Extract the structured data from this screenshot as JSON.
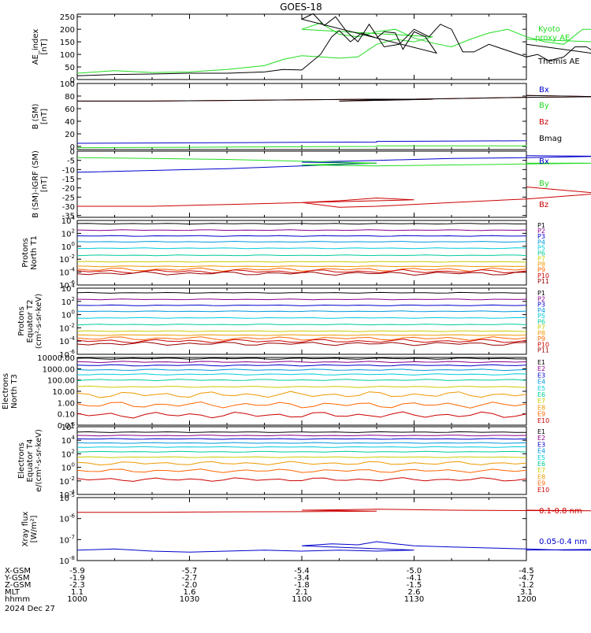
{
  "title": "GOES-18",
  "colors": {
    "black": "#000000",
    "red": "#cc0000",
    "green": "#22dd22",
    "blue": "#0000cc",
    "P": [
      "#000000",
      "#880088",
      "#0000cc",
      "#0099dd",
      "#00ccdd",
      "#00cc99",
      "#cccc00",
      "#ee9900",
      "#ff6600",
      "#cc0000",
      "#990000"
    ],
    "E": [
      "#000000",
      "#880088",
      "#0000cc",
      "#0099dd",
      "#00ccdd",
      "#00cc99",
      "#cccc00",
      "#ee9900",
      "#ff6600",
      "#cc0000",
      "#990000"
    ]
  },
  "time": {
    "range": [
      1000,
      1200
    ],
    "tick_times": [
      1000,
      1030,
      1100,
      1130,
      1200
    ],
    "coord_rows": [
      {
        "label": "X-GSM",
        "values": [
          "-5.9",
          "-5.7",
          "-5.4",
          "-5.0",
          "-4.5"
        ]
      },
      {
        "label": "Y-GSM",
        "values": [
          "-1.9",
          "-2.7",
          "-3.4",
          "-4.1",
          "-4.7"
        ]
      },
      {
        "label": "Z-GSM",
        "values": [
          "-2.3",
          "-2.0",
          "-1.8",
          "-1.5",
          "-1.2"
        ]
      },
      {
        "label": "MLT",
        "values": [
          "1.1",
          "1.6",
          "2.1",
          "2.6",
          "3.1"
        ]
      },
      {
        "label": "hhmm",
        "values": [
          "1000",
          "1030",
          "1100",
          "1130",
          "1200"
        ]
      }
    ],
    "date": "2024 Dec 27"
  },
  "chart_data": [
    {
      "type": "line",
      "ylabel": "AE_index [nT]",
      "ylim": [
        0,
        260
      ],
      "yticks": [
        "0",
        "50",
        "100",
        "150",
        "200",
        "250"
      ],
      "legend": [
        "Kyoto proxy AE",
        "Themis AE"
      ],
      "series": [
        {
          "name": "Kyoto proxy AE",
          "color": "green",
          "x": [
            1000,
            1010,
            1020,
            1030,
            1035,
            1040,
            1050,
            1055,
            1060,
            1065,
            1070,
            1075,
            1080,
            1085,
            1090,
            1095,
            1100,
            1105,
            1110,
            1115,
            1120,
            1125,
            1130,
            1135,
            1140,
            1145,
            1150,
            1155,
            1160,
            1165,
            1170,
            1175,
            1180,
            1185,
            1190,
            1195,
            1200
          ],
          "y": [
            25,
            35,
            28,
            30,
            35,
            40,
            55,
            80,
            95,
            90,
            85,
            90,
            140,
            160,
            150,
            170,
            200,
            225,
            180,
            170,
            190,
            200,
            165,
            145,
            130,
            160,
            185,
            200,
            170,
            150,
            140,
            200,
            200,
            175,
            120,
            140,
            160
          ]
        },
        {
          "name": "Themis AE",
          "color": "black",
          "x": [
            1000,
            1010,
            1020,
            1030,
            1040,
            1050,
            1055,
            1060,
            1065,
            1068,
            1070,
            1073,
            1076,
            1080,
            1082,
            1085,
            1087,
            1090,
            1093,
            1096,
            1100,
            1103,
            1106,
            1109,
            1112,
            1115,
            1118,
            1122,
            1126,
            1130,
            1134,
            1137,
            1140,
            1143,
            1146,
            1150,
            1153,
            1156,
            1160,
            1163,
            1166,
            1170,
            1173,
            1176,
            1180,
            1183,
            1186,
            1190,
            1193,
            1197,
            1200
          ],
          "y": [
            15,
            20,
            22,
            25,
            25,
            30,
            40,
            38,
            100,
            170,
            195,
            150,
            185,
            165,
            190,
            185,
            120,
            190,
            170,
            105,
            240,
            262,
            215,
            250,
            190,
            150,
            220,
            130,
            140,
            200,
            170,
            220,
            200,
            110,
            110,
            140,
            125,
            110,
            90,
            100,
            75,
            90,
            130,
            130,
            95,
            130,
            125,
            100,
            80,
            65,
            140
          ]
        }
      ]
    },
    {
      "type": "line",
      "ylabel": "B (SM) [nT]",
      "ylim": [
        -5,
        100
      ],
      "yticks": [
        "0",
        "20",
        "40",
        "60",
        "80",
        "100"
      ],
      "legend": [
        "Bx",
        "By",
        "Bz",
        "Bmag"
      ],
      "series": [
        {
          "name": "Bx",
          "color": "blue",
          "x": [
            1000,
            1040,
            1080,
            1120,
            1160,
            1200
          ],
          "y": [
            5,
            6,
            7,
            8,
            9,
            10
          ]
        },
        {
          "name": "By",
          "color": "green",
          "x": [
            1000,
            1040,
            1080,
            1120,
            1160,
            1200
          ],
          "y": [
            -2,
            -1,
            0,
            1,
            1,
            2
          ]
        },
        {
          "name": "Bz",
          "color": "red",
          "x": [
            1000,
            1020,
            1040,
            1060,
            1080,
            1095,
            1110,
            1120,
            1140,
            1160,
            1180,
            1200
          ],
          "y": [
            72,
            72,
            73,
            74,
            75,
            75,
            72,
            74,
            76,
            78,
            79,
            81
          ]
        },
        {
          "name": "Bmag",
          "color": "black",
          "x": [
            1000,
            1020,
            1040,
            1060,
            1080,
            1095,
            1110,
            1120,
            1140,
            1160,
            1180,
            1200
          ],
          "y": [
            72,
            72,
            73,
            74,
            75,
            75,
            72,
            74,
            76,
            78,
            79,
            81
          ]
        }
      ]
    },
    {
      "type": "line",
      "ylabel": "B (SM)-IGRF (SM) [nT]",
      "ylim": [
        -36,
        0
      ],
      "yticks": [
        "-35",
        "-30",
        "-25",
        "-20",
        "-15",
        "-10",
        "-5",
        "0"
      ],
      "legend": [
        "Bx",
        "By",
        "Bz"
      ],
      "series": [
        {
          "name": "Bx",
          "color": "blue",
          "x": [
            1000,
            1020,
            1040,
            1060,
            1080,
            1100,
            1120,
            1140,
            1160,
            1180,
            1200
          ],
          "y": [
            -11.5,
            -10.5,
            -9.5,
            -8,
            -6.5,
            -6,
            -5,
            -4,
            -3.5,
            -2.8,
            -2.5
          ]
        },
        {
          "name": "By",
          "color": "green",
          "x": [
            1000,
            1020,
            1040,
            1060,
            1080,
            1100,
            1120,
            1140,
            1160,
            1180,
            1200
          ],
          "y": [
            -3.5,
            -4,
            -4.5,
            -5.5,
            -6.5,
            -7.5,
            -8,
            -7.5,
            -7,
            -6.5,
            -6.5
          ]
        },
        {
          "name": "Bz",
          "color": "red",
          "x": [
            1000,
            1020,
            1040,
            1060,
            1070,
            1080,
            1090,
            1100,
            1110,
            1120,
            1140,
            1160,
            1180,
            1200
          ],
          "y": [
            -30,
            -30,
            -29,
            -28,
            -27,
            -25.5,
            -26.5,
            -28,
            -30.5,
            -30,
            -28,
            -26,
            -23,
            -19.5
          ]
        }
      ]
    },
    {
      "type": "line",
      "ylabel": "Protons North T1",
      "scale": "log",
      "ylim_exp": [
        -6,
        4
      ],
      "yticks": [
        "10^4",
        "10^2",
        "10^0",
        "10^-2",
        "10^-4",
        "10^-6"
      ],
      "legend": [
        "P1",
        "P2",
        "P3",
        "P4",
        "P5",
        "P6",
        "P7",
        "P8",
        "P9",
        "P10",
        "P11"
      ],
      "series": [
        {
          "name": "P1",
          "levels": [
            3.5
          ]
        },
        {
          "name": "P2",
          "levels": [
            2.5
          ]
        },
        {
          "name": "P3",
          "levels": [
            1.6
          ]
        },
        {
          "name": "P4",
          "levels": [
            0.7
          ]
        },
        {
          "name": "P5",
          "levels": [
            -0.3
          ]
        },
        {
          "name": "P6",
          "levels": [
            -1.4
          ]
        },
        {
          "name": "P7",
          "levels": [
            -2.4
          ]
        },
        {
          "name": "P8",
          "levels": [
            -3.1
          ]
        },
        {
          "name": "P9",
          "levels": [
            -3.6
          ]
        },
        {
          "name": "P10",
          "levels": [
            -3.9
          ]
        },
        {
          "name": "P11",
          "levels": [
            -4.2
          ]
        }
      ]
    },
    {
      "type": "line",
      "ylabel": "Protons Equator T2 (cm^2-s-sr-keV)",
      "scale": "log",
      "ylim_exp": [
        -6,
        4
      ],
      "yticks": [
        "10^4",
        "10^2",
        "10^0",
        "10^-2",
        "10^-4",
        "10^-6"
      ],
      "legend": [
        "P1",
        "P2",
        "P3",
        "P4",
        "P5",
        "P6",
        "P7",
        "P8",
        "P9",
        "P10",
        "P11"
      ],
      "series": [
        {
          "name": "P1",
          "levels": [
            3.3
          ]
        },
        {
          "name": "P2",
          "levels": [
            2.3
          ]
        },
        {
          "name": "P3",
          "levels": [
            1.4
          ]
        },
        {
          "name": "P4",
          "levels": [
            0.5
          ]
        },
        {
          "name": "P5",
          "levels": [
            -0.5
          ]
        },
        {
          "name": "P6",
          "levels": [
            -1.5
          ]
        },
        {
          "name": "P7",
          "levels": [
            -2.5
          ]
        },
        {
          "name": "P8",
          "levels": [
            -3.1
          ]
        },
        {
          "name": "P9",
          "levels": [
            -3.6
          ]
        },
        {
          "name": "P10",
          "levels": [
            -4.0
          ]
        },
        {
          "name": "P11",
          "levels": [
            -4.4
          ]
        }
      ]
    },
    {
      "type": "line",
      "ylabel": "Electrons North T3",
      "scale": "log",
      "ylim_exp": [
        -2,
        4
      ],
      "yticks": [
        "10000.00",
        "1000.00",
        "100.00",
        "10.00",
        "1.00",
        "0.10",
        "0.01"
      ],
      "legend": [
        "E1",
        "E2",
        "E3",
        "E4",
        "E5",
        "E6",
        "E7",
        "E8",
        "E9",
        "E10"
      ],
      "series": [
        {
          "name": "E1",
          "levels": [
            3.9
          ]
        },
        {
          "name": "E2",
          "levels": [
            3.6
          ]
        },
        {
          "name": "E3",
          "levels": [
            3.3
          ]
        },
        {
          "name": "E4",
          "levels": [
            2.9
          ]
        },
        {
          "name": "E5",
          "levels": [
            2.5
          ]
        },
        {
          "name": "E6",
          "levels": [
            2.0
          ]
        },
        {
          "name": "E7",
          "levels": [
            1.4
          ]
        },
        {
          "name": "E8",
          "levels": [
            0.7
          ]
        },
        {
          "name": "E9",
          "levels": [
            -0.2
          ]
        },
        {
          "name": "E10",
          "levels": [
            -1.1
          ]
        }
      ]
    },
    {
      "type": "line",
      "ylabel": "Electrons Equator T4 (e/(cm^2-s-sr-keV)",
      "scale": "log",
      "ylim_exp": [
        -4,
        6
      ],
      "yticks": [
        "10^6",
        "10^4",
        "10^2",
        "10^0",
        "10^-2",
        "10^-4"
      ],
      "legend": [
        "E1",
        "E2",
        "E3",
        "E4",
        "E5",
        "E6",
        "E7",
        "E8",
        "E9",
        "E10"
      ],
      "series": [
        {
          "name": "E1",
          "levels": [
            5.2
          ]
        },
        {
          "name": "E2",
          "levels": [
            4.7
          ]
        },
        {
          "name": "E3",
          "levels": [
            4.2
          ]
        },
        {
          "name": "E4",
          "levels": [
            3.6
          ]
        },
        {
          "name": "E5",
          "levels": [
            3.0
          ]
        },
        {
          "name": "E6",
          "levels": [
            2.3
          ]
        },
        {
          "name": "E7",
          "levels": [
            1.5
          ]
        },
        {
          "name": "E8",
          "levels": [
            0.6
          ]
        },
        {
          "name": "E9",
          "levels": [
            -0.5
          ]
        },
        {
          "name": "E10",
          "levels": [
            -1.8
          ]
        }
      ]
    },
    {
      "type": "line",
      "ylabel": "Xray flux [W/m^2]",
      "scale": "log",
      "ylim_exp": [
        -8,
        -5
      ],
      "yticks": [
        "10^-5",
        "10^-6",
        "10^-7",
        "10^-8"
      ],
      "legend": [
        "0.1-0.8 nm",
        "0.05-0.4 nm"
      ],
      "series": [
        {
          "name": "0.1-0.8 nm",
          "color": "red",
          "x": [
            1000,
            1020,
            1040,
            1060,
            1080,
            1100,
            1110,
            1120,
            1140,
            1160,
            1180,
            1200
          ],
          "y": [
            -5.7,
            -5.7,
            -5.68,
            -5.67,
            -5.65,
            -5.6,
            -5.58,
            -5.55,
            -5.6,
            -5.62,
            -5.63,
            -5.6
          ]
        },
        {
          "name": "0.05-0.4 nm",
          "color": "blue",
          "x": [
            1000,
            1010,
            1020,
            1030,
            1040,
            1050,
            1060,
            1070,
            1080,
            1090,
            1100,
            1108,
            1115,
            1120,
            1125,
            1130,
            1140,
            1150,
            1160,
            1170,
            1180,
            1190,
            1200
          ],
          "y": [
            -7.5,
            -7.45,
            -7.55,
            -7.6,
            -7.55,
            -7.5,
            -7.55,
            -7.5,
            -7.55,
            -7.5,
            -7.3,
            -7.2,
            -7.25,
            -7.1,
            -7.2,
            -7.3,
            -7.35,
            -7.4,
            -7.45,
            -7.5,
            -7.5,
            -7.45,
            -7.5
          ]
        }
      ]
    }
  ]
}
